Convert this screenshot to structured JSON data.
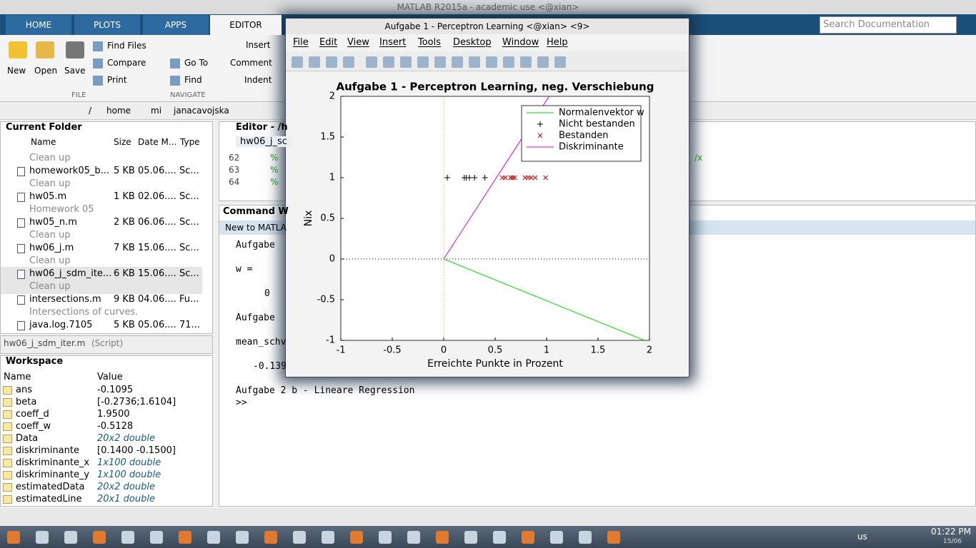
{
  "window_title": "MATLAB R2015a - academic use <@xian>",
  "tabs": [
    "HOME",
    "PLOTS",
    "APPS",
    "EDITOR"
  ],
  "ribbon": {
    "new": "New",
    "open": "Open",
    "save": "Save",
    "find_files": "Find Files",
    "compare": "Compare",
    "print": "Print",
    "go_to": "Go To",
    "find": "Find",
    "insert": "Insert",
    "comment": "Comment",
    "indent": "Indent",
    "groups": [
      "FILE",
      "NAVIGATE"
    ]
  },
  "search": "Search Documentation",
  "path": [
    "/",
    "home",
    "mi",
    "janacavojska"
  ],
  "current_folder": {
    "title": "Current Folder",
    "columns": [
      "Name",
      "Size",
      "Date M...",
      "Type"
    ],
    "items": [
      {
        "desc": "Clean up"
      },
      {
        "name": "homework05_b...",
        "size": "5 KB",
        "date": "05.06....",
        "type": "Sc..."
      },
      {
        "desc": "Clean up"
      },
      {
        "name": "hw05.m",
        "size": "1 KB",
        "date": "02.06....",
        "type": "Sc..."
      },
      {
        "desc": "Homework 05"
      },
      {
        "name": "hw05_n.m",
        "size": "2 KB",
        "date": "06.06....",
        "type": "Sc..."
      },
      {
        "desc": "Clean up"
      },
      {
        "name": "hw06_j.m",
        "size": "7 KB",
        "date": "15.06....",
        "type": "Sc..."
      },
      {
        "desc": "Clean up"
      },
      {
        "name": "hw06_j_sdm_ite...",
        "size": "6 KB",
        "date": "15.06....",
        "type": "Sc..."
      },
      {
        "desc": "Clean up"
      },
      {
        "name": "intersections.m",
        "size": "9 KB",
        "date": "04.06....",
        "type": "Fu..."
      },
      {
        "desc": "Intersections of curves."
      },
      {
        "name": "java.log.7105",
        "size": "5 KB",
        "date": "05.06....",
        "type": "71..."
      }
    ],
    "details_name": "hw06_j_sdm_iter.m",
    "details_type": "(Script)"
  },
  "workspace": {
    "title": "Workspace",
    "columns": [
      "Name",
      "Value"
    ],
    "variables": [
      {
        "name": "ans",
        "value": "-0.1095",
        "italic": false
      },
      {
        "name": "beta",
        "value": "[-0.2736;1.6104]",
        "italic": false
      },
      {
        "name": "coeff_d",
        "value": "1.9500",
        "italic": false
      },
      {
        "name": "coeff_w",
        "value": "-0.5128",
        "italic": false
      },
      {
        "name": "Data",
        "value": "20x2 double",
        "italic": true
      },
      {
        "name": "diskriminante",
        "value": "[0.1400 -0.1500]",
        "italic": false
      },
      {
        "name": "diskriminante_x",
        "value": "1x100 double",
        "italic": true
      },
      {
        "name": "diskriminante_y",
        "value": "1x100 double",
        "italic": true
      },
      {
        "name": "estimatedData",
        "value": "20x2 double",
        "italic": true
      },
      {
        "name": "estimatedLine",
        "value": "20x1 double",
        "italic": true
      }
    ]
  },
  "editor": {
    "title": "Editor - /h",
    "tab": "hw06_j_sc",
    "line_numbers": [
      "62",
      "63",
      "64"
    ],
    "comment": "%",
    "fragment": "/x"
  },
  "command_window": {
    "title": "Command W",
    "banner": "New to MATLA",
    "lines": [
      "Aufgabe",
      "w =",
      "0",
      "Aufgabe",
      "mean_schv",
      "-0.139",
      "Aufgabe 2 b - Lineare Regression"
    ],
    "prompt": ">>"
  },
  "figure": {
    "title": "Aufgabe 1 - Perceptron Learning <@xian> <9>",
    "menu": [
      "File",
      "Edit",
      "View",
      "Insert",
      "Tools",
      "Desktop",
      "Window",
      "Help"
    ]
  },
  "chart_data": {
    "type": "scatter",
    "title": "Aufgabe 1 - Perceptron Learning, neg. Verschiebung",
    "x_label": "Erreichte Punkte in Prozent",
    "y_label": "Nix",
    "xlim": [
      -1,
      2
    ],
    "ylim": [
      -1,
      2
    ],
    "xticks": [
      -1,
      -0.5,
      0,
      0.5,
      1,
      1.5,
      2
    ],
    "yticks": [
      -1,
      -0.5,
      0,
      0.5,
      1,
      1.5,
      2
    ],
    "legend": "upper right",
    "series": [
      {
        "name": "Normalenvektor w",
        "color": "#00dd00",
        "style": "line",
        "x": [
          0,
          1.95
        ],
        "values": [
          0,
          -1
        ]
      },
      {
        "name": "Nicht bestanden",
        "color": "#000000",
        "style": "plus",
        "x": [
          0.035,
          0.2,
          0.22,
          0.25,
          0.3,
          0.4
        ],
        "values": [
          1,
          1,
          1,
          1,
          1,
          1
        ]
      },
      {
        "name": "Bestanden",
        "color": "#cc0000",
        "style": "cross",
        "x": [
          0.57,
          0.6,
          0.65,
          0.67,
          0.69,
          0.79,
          0.82,
          0.85,
          0.89,
          0.99
        ],
        "values": [
          1,
          1,
          1,
          1,
          1,
          1,
          1,
          1,
          1,
          1
        ]
      },
      {
        "name": "Diskriminante",
        "color": "#dd00dd",
        "style": "line",
        "x": [
          0,
          1.025
        ],
        "values": [
          0,
          2
        ]
      }
    ]
  },
  "taskbar": {
    "keyboard": "us",
    "time": "01:22 PM",
    "date": "15/06"
  }
}
